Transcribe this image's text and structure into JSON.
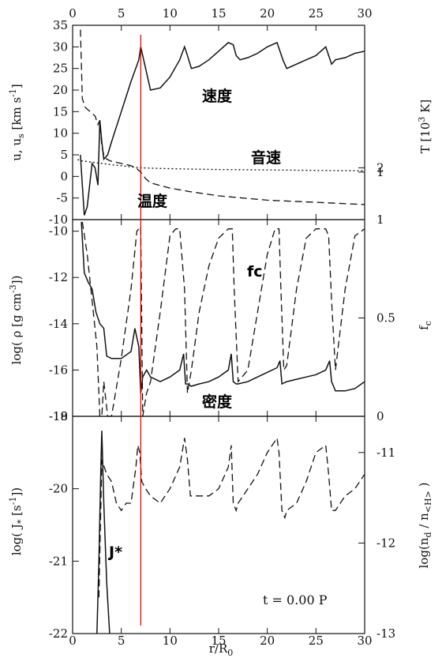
{
  "chart_data": [
    {
      "type": "line",
      "panel": "top",
      "xlim": [
        0,
        30
      ],
      "x_ticks": [
        0,
        5,
        10,
        15,
        20,
        25,
        30
      ],
      "ylabel": "u, u_s [km s^-1]",
      "ylim": [
        -10,
        35
      ],
      "y_ticks": [
        -10,
        -5,
        0,
        5,
        10,
        15,
        20,
        25,
        30,
        35
      ],
      "ylabel2": "T [10^3 K]",
      "y2_ticks": [
        {
          "value": 2,
          "label": "2"
        },
        {
          "value": 1,
          "label": "1"
        }
      ],
      "annotations": [
        "速度",
        "音速",
        "温度"
      ],
      "series": [
        {
          "style": "solid",
          "x": [
            0.8,
            1.0,
            1.2,
            1.5,
            2.0,
            2.3,
            2.6,
            2.8,
            3.0,
            3.2,
            3.6,
            4.0,
            5.0,
            6.0,
            6.8,
            7.0,
            7.2,
            7.6,
            8.0,
            9.0,
            10.0,
            11.0,
            11.5,
            11.8,
            12.2,
            13.0,
            14.0,
            15.0,
            16.0,
            16.5,
            16.8,
            17.2,
            18.0,
            19.0,
            20.0,
            21.0,
            21.3,
            21.6,
            22.0,
            23.0,
            24.0,
            25.0,
            26.0,
            26.3,
            26.6,
            27.0,
            28.0,
            29.0,
            30.0
          ],
          "y": [
            5,
            -2,
            -9,
            -7,
            3,
            2,
            -2,
            13,
            8,
            4,
            5,
            8,
            15,
            22,
            27,
            30,
            28,
            24,
            20,
            20.5,
            23,
            27,
            30,
            28,
            25,
            25.5,
            27,
            29,
            31,
            30.5,
            28,
            27,
            27.5,
            28.5,
            30,
            31,
            29,
            27,
            25,
            26,
            27,
            28,
            30,
            28,
            26,
            27,
            27.5,
            28.5,
            29
          ]
        },
        {
          "style": "dotted",
          "x": [
            0.5,
            1.0,
            2.0,
            3.0,
            4.0,
            5.0,
            6.0,
            7.0,
            8.0,
            10.0,
            12.0,
            15.0,
            20.0,
            25.0,
            30.0
          ],
          "y": [
            3.9,
            3.6,
            3.3,
            3.0,
            2.7,
            2.5,
            2.2,
            2.0,
            1.9,
            1.8,
            1.7,
            1.6,
            1.5,
            1.4,
            1.3
          ]
        },
        {
          "style": "dashed",
          "x": [
            0.8,
            1.0,
            1.3,
            1.8,
            2.3,
            2.6,
            2.8,
            3.0,
            3.2,
            3.5,
            4.0,
            5.0,
            6.0,
            6.5,
            7.0,
            7.5,
            8.0,
            10.0,
            12.0,
            15.0,
            20.0,
            25.0,
            30.0
          ],
          "y": [
            34,
            18,
            16,
            15,
            14,
            12,
            13,
            7,
            5,
            4,
            3.5,
            3,
            2.5,
            2,
            1,
            -0.5,
            -1.5,
            -2.7,
            -3.5,
            -4.5,
            -5.5,
            -6,
            -6.5
          ]
        }
      ],
      "cursor_x": 7.0
    },
    {
      "type": "line",
      "panel": "middle",
      "xlim": [
        0,
        30
      ],
      "ylabel": "log( ρ [g cm^-3])",
      "ylim": [
        -18,
        -9.5
      ],
      "y_ticks": [
        -18,
        -16,
        -14,
        -12,
        -10
      ],
      "ylabel2": "f_c",
      "y2_ticks": [
        {
          "value": -18,
          "label": "0"
        },
        {
          "value": -13.75,
          "label": "0.5"
        },
        {
          "value": -9.5,
          "label": "1"
        }
      ],
      "annotations": [
        "fc",
        "密度"
      ],
      "series": [
        {
          "style": "solid",
          "x": [
            0.9,
            1.2,
            1.6,
            2.0,
            2.4,
            2.8,
            3.2,
            3.5,
            4.0,
            5.0,
            6.0,
            6.4,
            6.8,
            7.0,
            7.2,
            7.6,
            8.0,
            9.0,
            10.0,
            11.0,
            11.4,
            11.6,
            11.8,
            12.2,
            13.0,
            14.0,
            15.0,
            16.0,
            16.3,
            16.5,
            16.8,
            17.0,
            18.0,
            19.0,
            20.0,
            21.0,
            21.3,
            21.5,
            22.0,
            23.0,
            24.0,
            25.0,
            26.0,
            26.4,
            26.6,
            27.0,
            28.0,
            29.0,
            30.0
          ],
          "y": [
            -9.6,
            -11.8,
            -12.2,
            -12.5,
            -13.5,
            -14.0,
            -14.2,
            -15.4,
            -15.5,
            -15.5,
            -15.2,
            -14.2,
            -15.0,
            -17.0,
            -16.3,
            -16.0,
            -16.3,
            -16.5,
            -16.3,
            -16.0,
            -15.3,
            -16.6,
            -16.6,
            -16.7,
            -16.6,
            -16.5,
            -16.3,
            -16.0,
            -15.3,
            -16.5,
            -16.6,
            -16.6,
            -16.5,
            -16.3,
            -16.1,
            -15.9,
            -15.6,
            -16.6,
            -16.5,
            -16.4,
            -16.3,
            -16.2,
            -16.0,
            -15.6,
            -16.5,
            -16.9,
            -16.9,
            -16.8,
            -16.5
          ]
        },
        {
          "style": "dashed",
          "x": [
            1.0,
            1.5,
            2.0,
            2.5,
            2.8,
            3.0,
            3.2,
            3.6,
            4.0,
            5.0,
            6.0,
            6.6,
            7.0,
            7.2,
            7.6,
            8.0,
            9.0,
            10.0,
            10.6,
            11.0,
            11.5,
            11.8,
            12.2,
            13.0,
            14.0,
            15.0,
            16.0,
            16.4,
            16.6,
            17.0,
            18.0,
            19.0,
            20.0,
            20.8,
            21.2,
            21.4,
            21.7,
            22.0,
            23.0,
            24.0,
            25.0,
            26.0,
            26.3,
            26.6,
            27.0,
            28.0,
            29.0,
            30.0
          ],
          "y": [
            -9.6,
            -11.0,
            -13.0,
            -15.0,
            -18.0,
            -18.0,
            -16.5,
            -18.0,
            -18.0,
            -15.5,
            -12.5,
            -10.0,
            -9.8,
            -18.0,
            -17.0,
            -16.5,
            -13.5,
            -10.2,
            -9.9,
            -9.9,
            -12.5,
            -17.0,
            -16.0,
            -13.5,
            -11.5,
            -10.3,
            -9.9,
            -9.9,
            -12.5,
            -16.5,
            -16.0,
            -13.5,
            -11.0,
            -9.9,
            -9.9,
            -12.5,
            -16.0,
            -15.8,
            -12.5,
            -10.3,
            -9.9,
            -9.9,
            -10.2,
            -13.0,
            -16.0,
            -12.5,
            -10.2,
            -9.9
          ]
        }
      ],
      "cursor_x": 7.0
    },
    {
      "type": "line",
      "panel": "bottom",
      "xlim": [
        0,
        30
      ],
      "x_ticks": [
        0,
        5,
        10,
        15,
        20,
        25,
        30
      ],
      "xlabel": "r/R₀",
      "ylabel": "log( J* [s^-1])",
      "ylim": [
        -22,
        -19
      ],
      "y_ticks": [
        -22,
        -21,
        -20,
        -19
      ],
      "ylabel2": "log(n_d / n_<H>)",
      "y2_ticks": [
        {
          "value": -19.5,
          "label": "-11"
        },
        {
          "value": -20.75,
          "label": "-12"
        },
        {
          "value": -22,
          "label": "-13"
        }
      ],
      "annotations": [
        "J*",
        "t = 0.00 P"
      ],
      "series": [
        {
          "style": "solid",
          "x": [
            2.5,
            2.7,
            2.9,
            3.0,
            3.2,
            3.5,
            3.8
          ],
          "y": [
            -22,
            -21,
            -19.7,
            -19.2,
            -20.2,
            -21.3,
            -22
          ]
        },
        {
          "style": "dashed",
          "x": [
            2.7,
            3.0,
            3.5,
            4.0,
            4.5,
            5.0,
            5.5,
            6.0,
            6.5,
            6.7,
            6.9,
            7.1,
            7.5,
            8.0,
            9.0,
            10.0,
            11.0,
            11.5,
            11.8,
            12.1,
            12.5,
            13.0,
            14.0,
            15.0,
            16.0,
            16.3,
            16.5,
            16.8,
            17.0,
            18.0,
            19.0,
            20.0,
            21.0,
            21.2,
            21.5,
            21.8,
            22.0,
            23.0,
            24.0,
            25.0,
            26.0,
            26.3,
            26.6,
            27.0,
            28.0,
            29.0,
            30.0
          ],
          "y": [
            -21.5,
            -19.6,
            -19.8,
            -19.9,
            -20.2,
            -20.3,
            -20.2,
            -20.2,
            -19.7,
            -19.4,
            -19.5,
            -19.9,
            -20.0,
            -20.1,
            -20.2,
            -20.0,
            -19.7,
            -19.3,
            -19.6,
            -20.1,
            -20.1,
            -20.1,
            -20.1,
            -20.0,
            -19.7,
            -19.4,
            -20.2,
            -20.3,
            -20.2,
            -20.0,
            -19.8,
            -19.5,
            -19.3,
            -19.5,
            -20.3,
            -20.4,
            -20.3,
            -20.2,
            -19.9,
            -19.5,
            -19.4,
            -19.8,
            -20.3,
            -20.3,
            -20.1,
            -20.0,
            -19.8
          ]
        }
      ],
      "cursor_x": 7.0
    }
  ],
  "figure": {
    "cursor_color": "#cc0000",
    "line_color": "#111111"
  }
}
